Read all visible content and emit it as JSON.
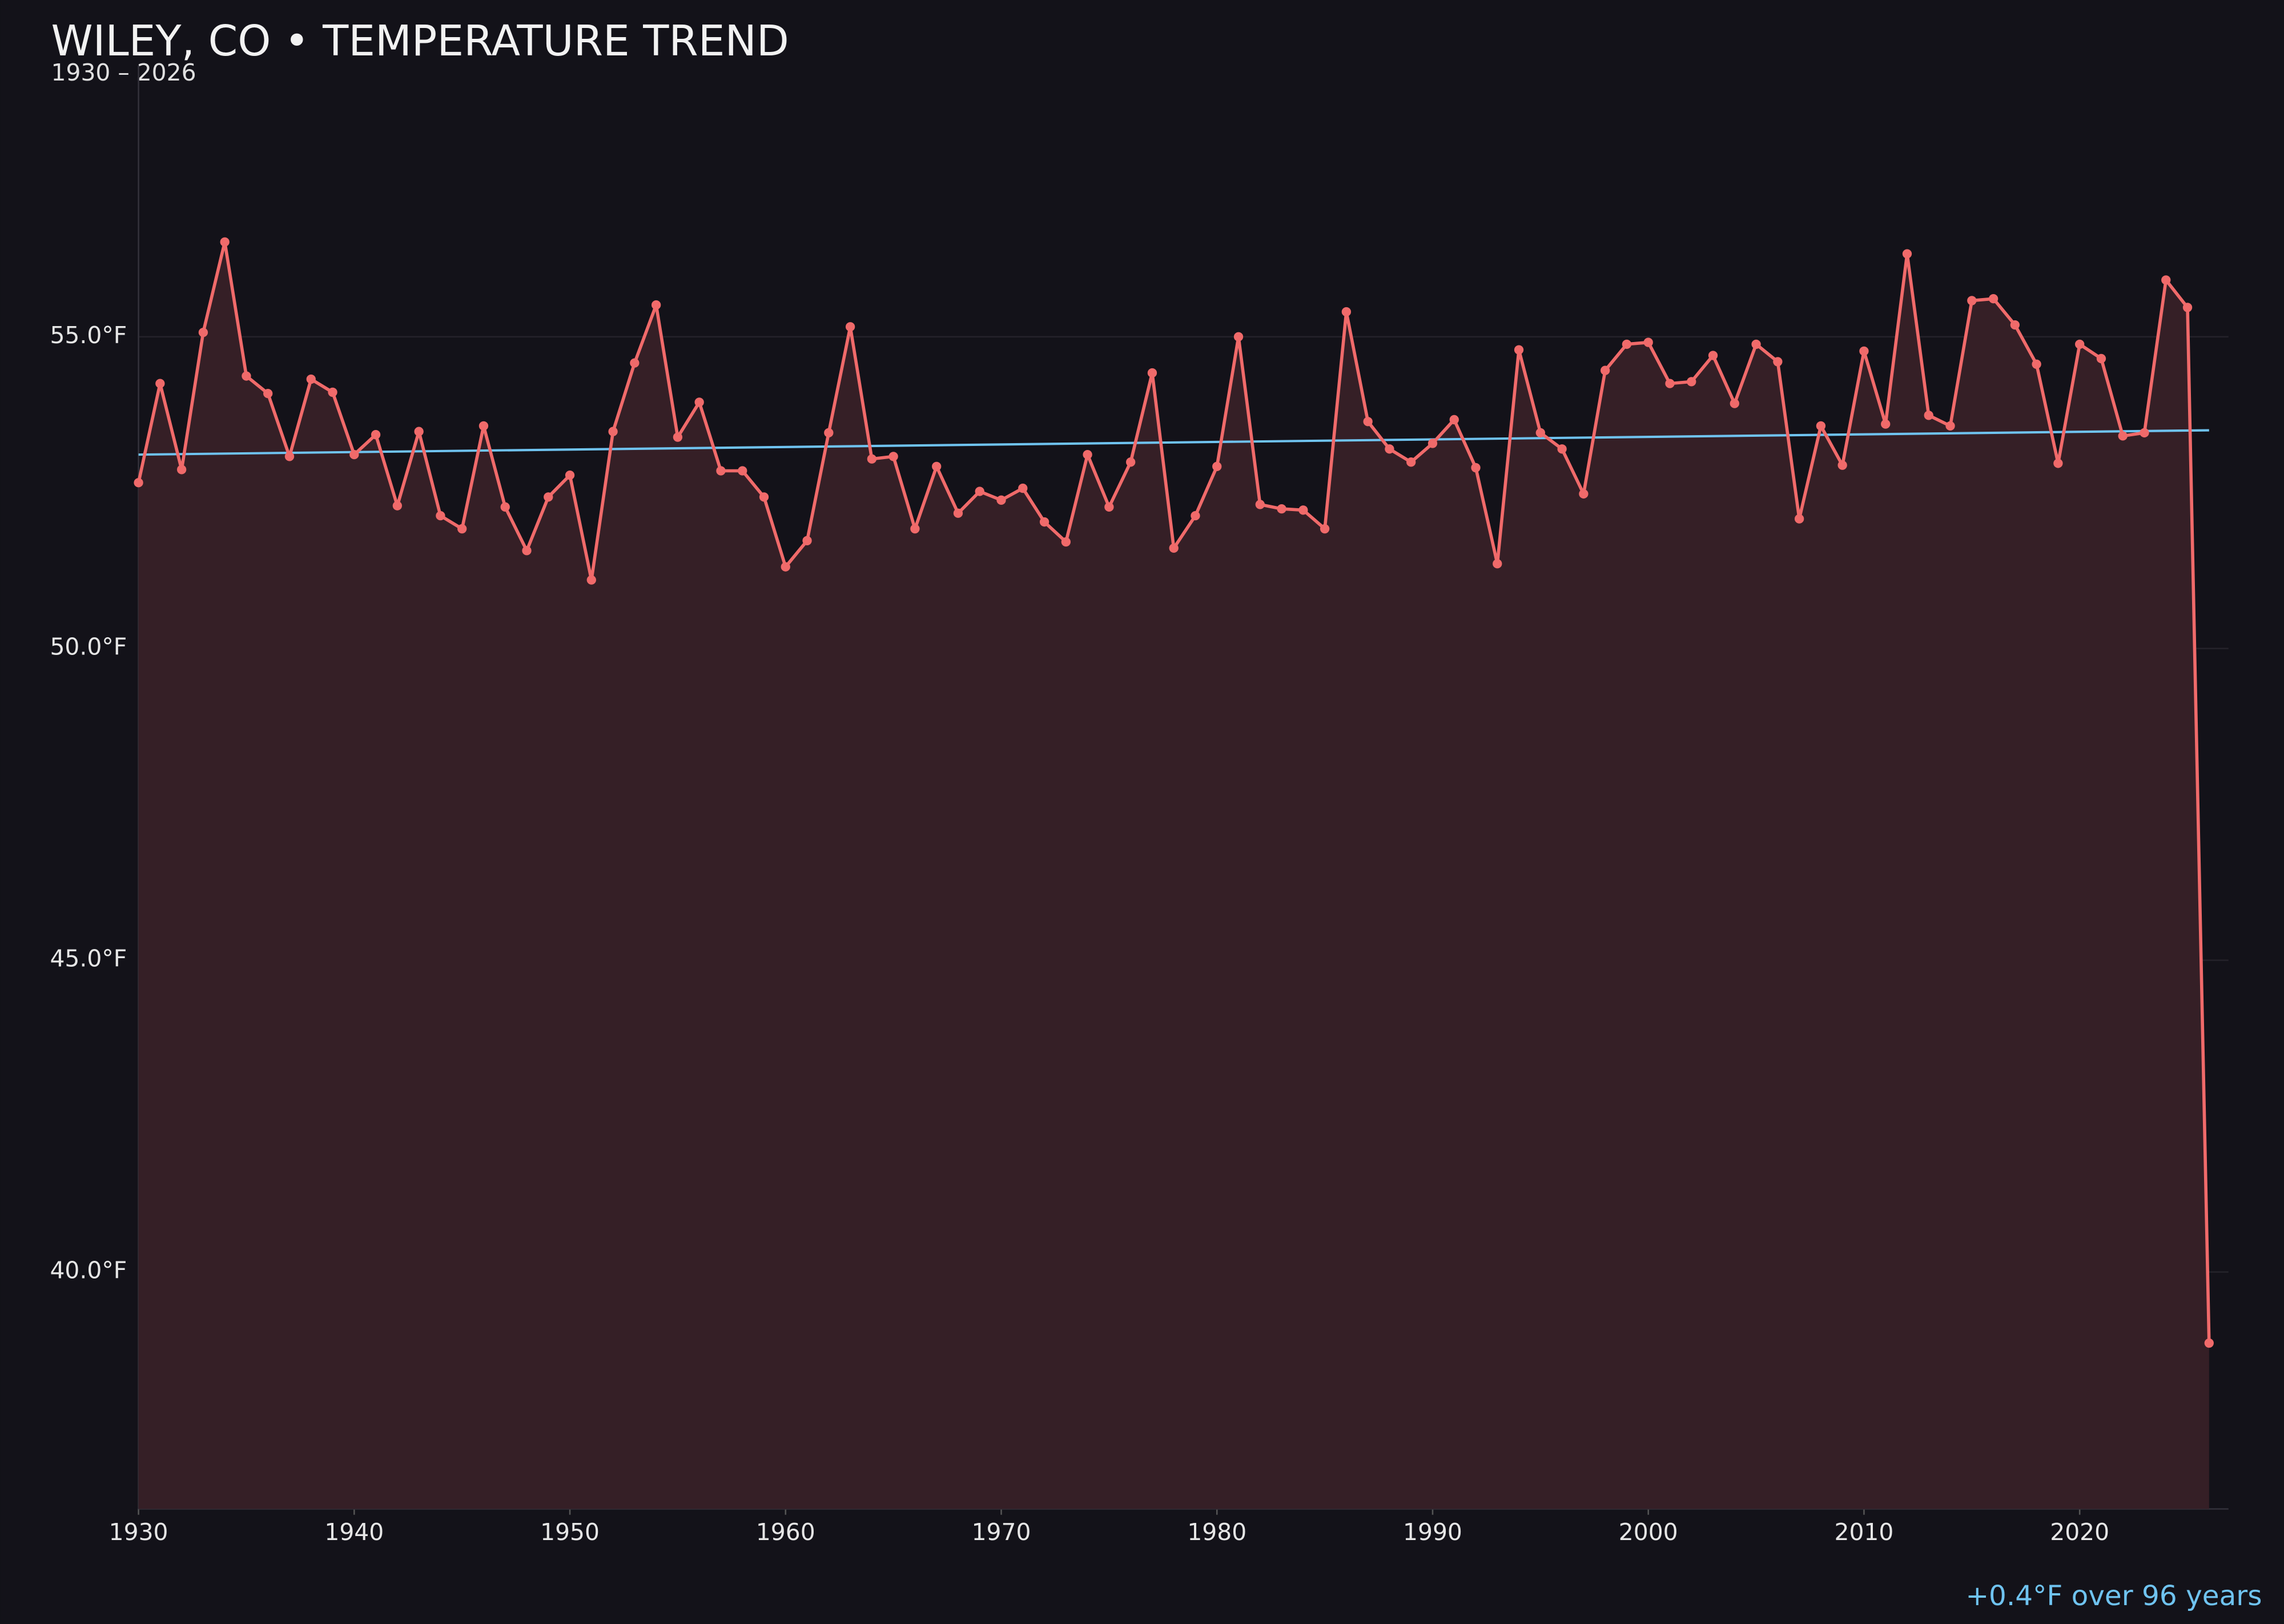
{
  "chart_data": {
    "type": "line",
    "title": "WILEY, CO • TEMPERATURE TREND",
    "subtitle": "1930 – 2026",
    "annotation": "+0.4°F over 96 years",
    "x": [
      1930,
      1931,
      1932,
      1933,
      1934,
      1935,
      1936,
      1937,
      1938,
      1939,
      1940,
      1941,
      1942,
      1943,
      1944,
      1945,
      1946,
      1947,
      1948,
      1949,
      1950,
      1951,
      1952,
      1953,
      1954,
      1955,
      1956,
      1957,
      1958,
      1959,
      1960,
      1961,
      1962,
      1963,
      1964,
      1965,
      1966,
      1967,
      1968,
      1969,
      1970,
      1971,
      1972,
      1973,
      1974,
      1975,
      1976,
      1977,
      1978,
      1979,
      1980,
      1981,
      1982,
      1983,
      1984,
      1985,
      1986,
      1987,
      1988,
      1989,
      1990,
      1991,
      1992,
      1993,
      1994,
      1995,
      1996,
      1997,
      1998,
      1999,
      2000,
      2001,
      2002,
      2003,
      2004,
      2005,
      2006,
      2007,
      2008,
      2009,
      2010,
      2011,
      2012,
      2013,
      2014,
      2015,
      2016,
      2017,
      2018,
      2019,
      2020,
      2021,
      2022,
      2023,
      2024,
      2025,
      2026
    ],
    "values": [
      52.66,
      54.25,
      52.87,
      55.07,
      56.52,
      54.37,
      54.09,
      53.08,
      54.32,
      54.11,
      53.11,
      53.43,
      52.29,
      53.48,
      52.13,
      51.92,
      53.57,
      52.27,
      51.57,
      52.43,
      52.78,
      51.1,
      53.48,
      54.58,
      55.51,
      53.39,
      53.95,
      52.85,
      52.85,
      52.43,
      51.31,
      51.73,
      53.46,
      55.16,
      53.04,
      53.08,
      51.92,
      52.92,
      52.17,
      52.52,
      52.38,
      52.57,
      52.03,
      51.71,
      53.11,
      52.27,
      52.99,
      54.42,
      51.61,
      52.13,
      52.92,
      55.0,
      52.31,
      52.24,
      52.22,
      51.92,
      55.4,
      53.64,
      53.2,
      52.99,
      53.29,
      53.67,
      52.9,
      51.36,
      54.79,
      53.46,
      53.2,
      52.48,
      54.46,
      54.88,
      54.91,
      54.25,
      54.28,
      54.7,
      53.93,
      54.88,
      54.6,
      52.08,
      53.57,
      52.94,
      54.77,
      53.6,
      56.33,
      53.74,
      53.57,
      55.58,
      55.61,
      55.19,
      54.56,
      52.97,
      54.88,
      54.65,
      53.41,
      53.46,
      55.91,
      55.47,
      38.86
    ],
    "color": "#f06a6a",
    "area_color": "#351f26",
    "trend": {
      "x": [
        1930,
        2026
      ],
      "values": [
        53.11,
        53.5
      ],
      "color": "#6fc3f0"
    },
    "xlim": [
      1930,
      2026.9
    ],
    "ylim": [
      36.2,
      59.35
    ],
    "xticks": [
      1930,
      1940,
      1950,
      1960,
      1970,
      1980,
      1990,
      2000,
      2010,
      2020
    ],
    "yticks": [
      {
        "value": 40,
        "label": "40.0°F"
      },
      {
        "value": 45,
        "label": "45.0°F"
      },
      {
        "value": 50,
        "label": "50.0°F"
      },
      {
        "value": 55,
        "label": "55.0°F"
      }
    ],
    "grid": true
  }
}
